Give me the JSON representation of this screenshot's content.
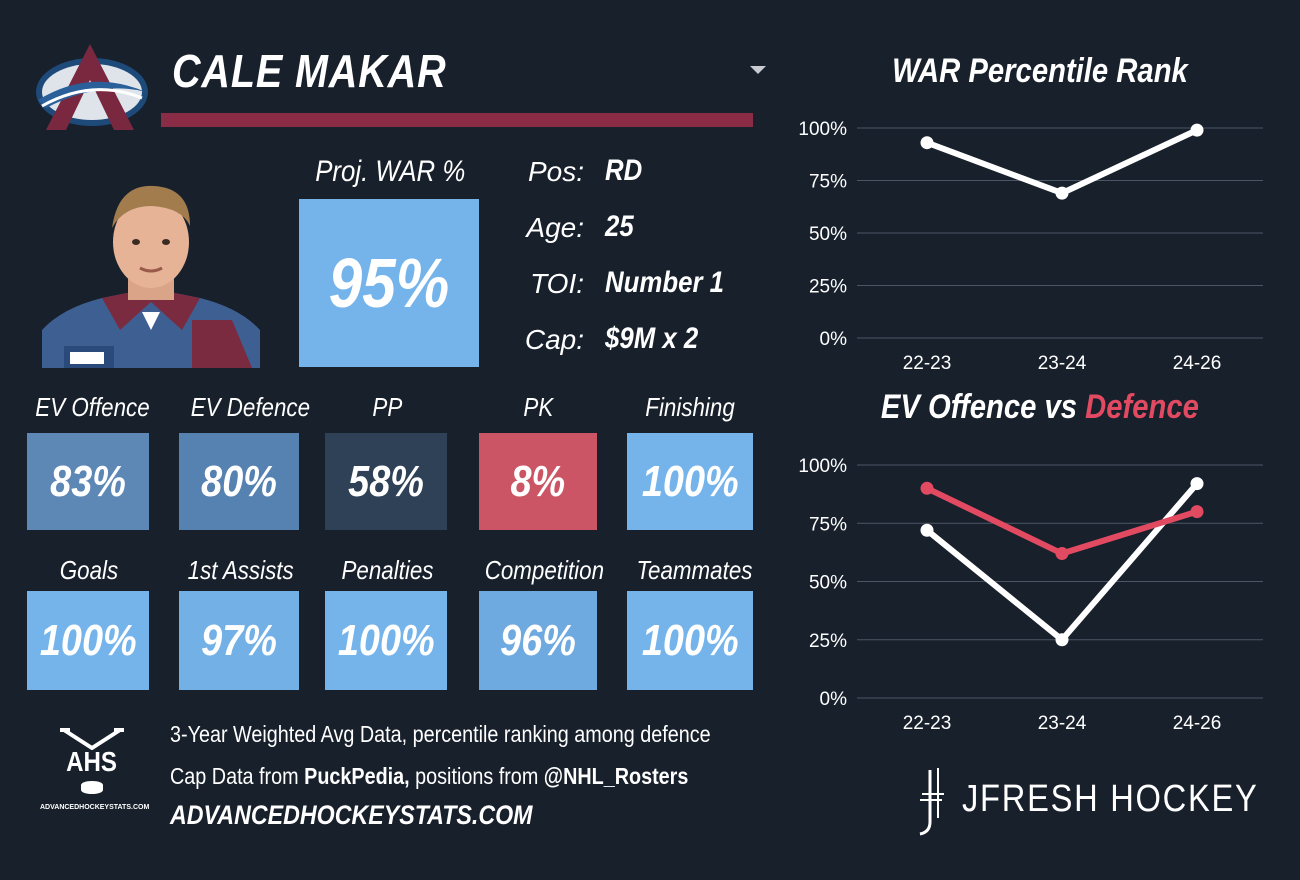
{
  "player": {
    "name": "CALE MAKAR",
    "team_logo": "colorado-avalanche-logo",
    "photo": "player-headshot"
  },
  "projection": {
    "label": "Proj. WAR %",
    "value": "95%"
  },
  "info": [
    {
      "label": "Pos:",
      "value": "RD"
    },
    {
      "label": "Age:",
      "value": "25"
    },
    {
      "label": "TOI:",
      "value": "Number 1"
    },
    {
      "label": "Cap:",
      "value": "$9M x 2"
    }
  ],
  "tiles": [
    {
      "label": "EV Offence",
      "value": "83%",
      "color": "#5d87b5"
    },
    {
      "label": "EV Defence",
      "value": "80%",
      "color": "#5682b1"
    },
    {
      "label": "PP",
      "value": "58%",
      "color": "#2f4157"
    },
    {
      "label": "PK",
      "value": "8%",
      "color": "#cb5565"
    },
    {
      "label": "Finishing",
      "value": "100%",
      "color": "#74b4ea"
    },
    {
      "label": "Goals",
      "value": "100%",
      "color": "#74b4ea"
    },
    {
      "label": "1st Assists",
      "value": "97%",
      "color": "#72b0e6"
    },
    {
      "label": "Penalties",
      "value": "100%",
      "color": "#74b4ea"
    },
    {
      "label": "Competition",
      "value": "96%",
      "color": "#6ea9e0"
    },
    {
      "label": "Teammates",
      "value": "100%",
      "color": "#74b4ea"
    }
  ],
  "footer": {
    "line1": "3-Year Weighted Avg Data, percentile ranking among defence",
    "line2_prefix": "Cap Data from ",
    "line2_source1": "PuckPedia,",
    "line2_middle": " positions from ",
    "line2_source2": "@NHL_Rosters",
    "site": "ADVANCEDHOCKEYSTATS.COM",
    "ahs_logo_text": "AHS",
    "ahs_logo_sub": "ADVANCEDHOCKEYSTATS.COM",
    "brand": "JFRESH HOCKEY"
  },
  "colors": {
    "background": "#18202b",
    "accent": "#8a2c45",
    "defence_red": "#e24a62",
    "line_white": "#ffffff",
    "grid": "#4a5566"
  },
  "chart_data": [
    {
      "type": "line",
      "title": "WAR Percentile Rank",
      "categories": [
        "22-23",
        "23-24",
        "24-26"
      ],
      "series": [
        {
          "values": [
            93,
            69,
            99
          ],
          "color": "#ffffff"
        }
      ],
      "ylim": [
        0,
        100
      ],
      "yticks": [
        "0%",
        "25%",
        "50%",
        "75%",
        "100%"
      ],
      "grid": true
    },
    {
      "type": "line",
      "title_part1": "EV Offence vs ",
      "title_part2": "Defence",
      "categories": [
        "22-23",
        "23-24",
        "24-26"
      ],
      "series": [
        {
          "name": "EV Offence",
          "values": [
            72,
            25,
            92
          ],
          "color": "#ffffff"
        },
        {
          "name": "Defence",
          "values": [
            90,
            62,
            80
          ],
          "color": "#e24a62"
        }
      ],
      "ylim": [
        0,
        100
      ],
      "yticks": [
        "0%",
        "25%",
        "50%",
        "75%",
        "100%"
      ],
      "grid": true
    }
  ]
}
